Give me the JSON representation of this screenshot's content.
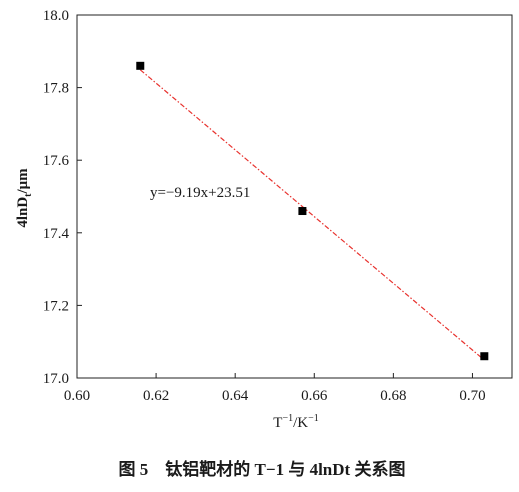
{
  "chart_data": {
    "type": "scatter",
    "x": [
      0.616,
      0.657,
      0.703
    ],
    "series": [
      {
        "values": [
          17.86,
          17.46,
          17.06
        ]
      }
    ],
    "fit_line": {
      "slope": -9.19,
      "intercept": 23.51,
      "x_range": [
        0.616,
        0.703
      ],
      "color": "#e8322e"
    },
    "annotation": "y=−9.19x+23.51",
    "xlabel_base": "T",
    "xlabel_sup1": "−1",
    "xlabel_mid": "/K",
    "xlabel_sup2": "−1",
    "ylabel_main": "4lnD",
    "ylabel_sub": "t",
    "ylabel_unit": "/μm",
    "xlim": [
      0.6,
      0.71
    ],
    "ylim": [
      17.0,
      18.0
    ],
    "xticks": [
      0.6,
      0.62,
      0.64,
      0.66,
      0.68,
      0.7
    ],
    "yticks": [
      17.0,
      17.2,
      17.4,
      17.6,
      17.8,
      18.0
    ],
    "xtick_labels": [
      "0.60",
      "0.62",
      "0.64",
      "0.66",
      "0.68",
      "0.70"
    ],
    "ytick_labels": [
      "17.0",
      "17.2",
      "17.4",
      "17.6",
      "17.8",
      "18.0"
    ],
    "grid": false,
    "marker_color": "#000000"
  },
  "caption": "图 5　钛铝靶材的 T−1 与 4lnDt 关系图"
}
